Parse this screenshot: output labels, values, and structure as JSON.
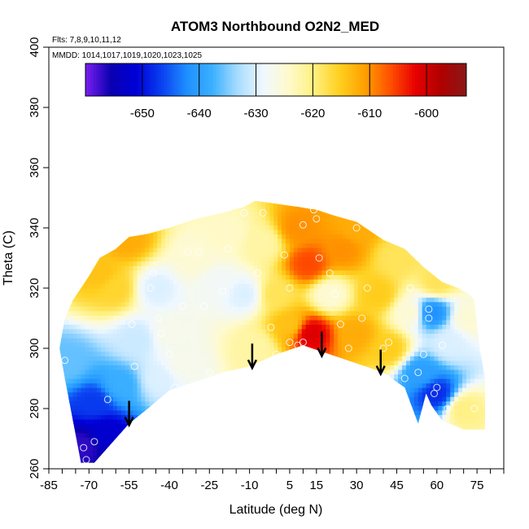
{
  "chart_data": {
    "type": "heatmap",
    "title": "ATOM3 Northbound O2N2_MED",
    "annotations": {
      "flights": "Flts: 7,8,9,10,11,12",
      "dates": "MMDD: 1014,1017,1019,1020,1023,1025"
    },
    "xlabel": "Latitude (deg N)",
    "ylabel": "Theta (C)",
    "xlim": [
      -85,
      85
    ],
    "ylim": [
      260,
      400
    ],
    "x_ticks": [
      -85,
      -70,
      -55,
      -40,
      -25,
      -10,
      5,
      15,
      30,
      45,
      60,
      75
    ],
    "x_tick_labels": [
      "-85",
      "-70",
      "-55",
      "-40",
      "-25",
      "-10",
      "5",
      "15",
      "30",
      "45",
      "60",
      "75"
    ],
    "y_ticks": [
      260,
      280,
      300,
      320,
      340,
      360,
      380,
      400
    ],
    "y_tick_labels": [
      "260",
      "280",
      "300",
      "320",
      "340",
      "360",
      "380",
      "400"
    ],
    "colorbar": {
      "range": [
        -660,
        -593
      ],
      "ticks": [
        -650,
        -640,
        -630,
        -620,
        -610,
        -600
      ],
      "tick_labels": [
        "-650",
        "-640",
        "-630",
        "-620",
        "-610",
        "-600"
      ],
      "colors": [
        "#7a1ff0",
        "#0a00b0",
        "#0000d8",
        "#0a40f0",
        "#1e90ff",
        "#3cb0ff",
        "#a8dcff",
        "#f0f8ff",
        "#fffacc",
        "#fff080",
        "#ffd020",
        "#ffa000",
        "#ff5000",
        "#e80000",
        "#b00000",
        "#8a1818"
      ],
      "position": "top"
    },
    "domain_boundary": [
      [
        -79,
        310
      ],
      [
        -78,
        312
      ],
      [
        -76,
        316
      ],
      [
        -73,
        320
      ],
      [
        -70,
        324
      ],
      [
        -66,
        330
      ],
      [
        -60,
        333
      ],
      [
        -55,
        337
      ],
      [
        -48,
        338
      ],
      [
        -40,
        340
      ],
      [
        -30,
        343
      ],
      [
        -20,
        345
      ],
      [
        -12,
        347
      ],
      [
        -8,
        349
      ],
      [
        0,
        348
      ],
      [
        8,
        347
      ],
      [
        15,
        346
      ],
      [
        22,
        344
      ],
      [
        30,
        342
      ],
      [
        40,
        336
      ],
      [
        48,
        333
      ],
      [
        55,
        327
      ],
      [
        62,
        322
      ],
      [
        68,
        320
      ],
      [
        72,
        318
      ],
      [
        74,
        316
      ],
      [
        76,
        300
      ],
      [
        78,
        290
      ],
      [
        78,
        273
      ],
      [
        70,
        273
      ],
      [
        62,
        276
      ],
      [
        58,
        281
      ],
      [
        56,
        285
      ],
      [
        53,
        275
      ],
      [
        48,
        287
      ],
      [
        40,
        292
      ],
      [
        30,
        295
      ],
      [
        20,
        298
      ],
      [
        10,
        301
      ],
      [
        0,
        298
      ],
      [
        -10,
        294
      ],
      [
        -20,
        292
      ],
      [
        -30,
        289
      ],
      [
        -40,
        286
      ],
      [
        -48,
        280
      ],
      [
        -55,
        275
      ],
      [
        -62,
        268
      ],
      [
        -68,
        262
      ],
      [
        -73,
        262
      ],
      [
        -76,
        276
      ],
      [
        -79,
        290
      ],
      [
        -81,
        300
      ]
    ],
    "field_nodes": [
      {
        "x": -78,
        "y": 295,
        "v": -636
      },
      {
        "x": -72,
        "y": 268,
        "v": -657
      },
      {
        "x": -68,
        "y": 282,
        "v": -647
      },
      {
        "x": -64,
        "y": 272,
        "v": -652
      },
      {
        "x": -58,
        "y": 288,
        "v": -638
      },
      {
        "x": -52,
        "y": 303,
        "v": -631
      },
      {
        "x": -60,
        "y": 320,
        "v": -616
      },
      {
        "x": -56,
        "y": 336,
        "v": -612
      },
      {
        "x": -66,
        "y": 325,
        "v": -614
      },
      {
        "x": -45,
        "y": 320,
        "v": -630
      },
      {
        "x": -40,
        "y": 305,
        "v": -627
      },
      {
        "x": -35,
        "y": 295,
        "v": -627
      },
      {
        "x": -44,
        "y": 290,
        "v": -630
      },
      {
        "x": -30,
        "y": 330,
        "v": -625
      },
      {
        "x": -22,
        "y": 322,
        "v": -628
      },
      {
        "x": -18,
        "y": 338,
        "v": -624
      },
      {
        "x": -12,
        "y": 318,
        "v": -630
      },
      {
        "x": -8,
        "y": 300,
        "v": -622
      },
      {
        "x": -5,
        "y": 335,
        "v": -622
      },
      {
        "x": 0,
        "y": 318,
        "v": -618
      },
      {
        "x": 5,
        "y": 308,
        "v": -614
      },
      {
        "x": 8,
        "y": 340,
        "v": -610
      },
      {
        "x": 12,
        "y": 328,
        "v": -606
      },
      {
        "x": 13,
        "y": 305,
        "v": -601
      },
      {
        "x": 20,
        "y": 318,
        "v": -625
      },
      {
        "x": 25,
        "y": 333,
        "v": -610
      },
      {
        "x": 30,
        "y": 305,
        "v": -612
      },
      {
        "x": 30,
        "y": 340,
        "v": -612
      },
      {
        "x": 38,
        "y": 318,
        "v": -615
      },
      {
        "x": 42,
        "y": 300,
        "v": -615
      },
      {
        "x": 45,
        "y": 330,
        "v": -618
      },
      {
        "x": 50,
        "y": 312,
        "v": -625
      },
      {
        "x": 54,
        "y": 292,
        "v": -640
      },
      {
        "x": 58,
        "y": 312,
        "v": -642
      },
      {
        "x": 60,
        "y": 285,
        "v": -648
      },
      {
        "x": 65,
        "y": 302,
        "v": -630
      },
      {
        "x": 70,
        "y": 280,
        "v": -620
      },
      {
        "x": 72,
        "y": 310,
        "v": -625
      },
      {
        "x": 60,
        "y": 322,
        "v": -618
      }
    ],
    "sample_points": [
      [
        -79,
        296
      ],
      [
        -72,
        267
      ],
      [
        -71,
        263
      ],
      [
        -68,
        269
      ],
      [
        -63,
        283
      ],
      [
        -59,
        268
      ],
      [
        -54,
        308
      ],
      [
        -53,
        294
      ],
      [
        -47,
        320
      ],
      [
        -46,
        325
      ],
      [
        -44,
        310
      ],
      [
        -43,
        305
      ],
      [
        -40,
        298
      ],
      [
        -38,
        287
      ],
      [
        -35,
        314
      ],
      [
        -33,
        332
      ],
      [
        -32,
        287
      ],
      [
        -29,
        332
      ],
      [
        -27,
        314
      ],
      [
        -25,
        292
      ],
      [
        -20,
        319
      ],
      [
        -18,
        333
      ],
      [
        -12,
        345
      ],
      [
        -7,
        325
      ],
      [
        -5,
        345
      ],
      [
        -2,
        307
      ],
      [
        0,
        298
      ],
      [
        3,
        331
      ],
      [
        5,
        320
      ],
      [
        5,
        302
      ],
      [
        8,
        301
      ],
      [
        10,
        302
      ],
      [
        10,
        341
      ],
      [
        14,
        346
      ],
      [
        15,
        343
      ],
      [
        16,
        330
      ],
      [
        20,
        325
      ],
      [
        22,
        318
      ],
      [
        24,
        308
      ],
      [
        27,
        300
      ],
      [
        30,
        340
      ],
      [
        32,
        310
      ],
      [
        34,
        320
      ],
      [
        40,
        300
      ],
      [
        42,
        302
      ],
      [
        48,
        290
      ],
      [
        50,
        320
      ],
      [
        53,
        292
      ],
      [
        55,
        298
      ],
      [
        57,
        310
      ],
      [
        57,
        313
      ],
      [
        59,
        285
      ],
      [
        60,
        287
      ],
      [
        62,
        301
      ],
      [
        64,
        280
      ],
      [
        74,
        280
      ]
    ],
    "arrows": [
      -55,
      -9,
      17,
      39
    ]
  }
}
